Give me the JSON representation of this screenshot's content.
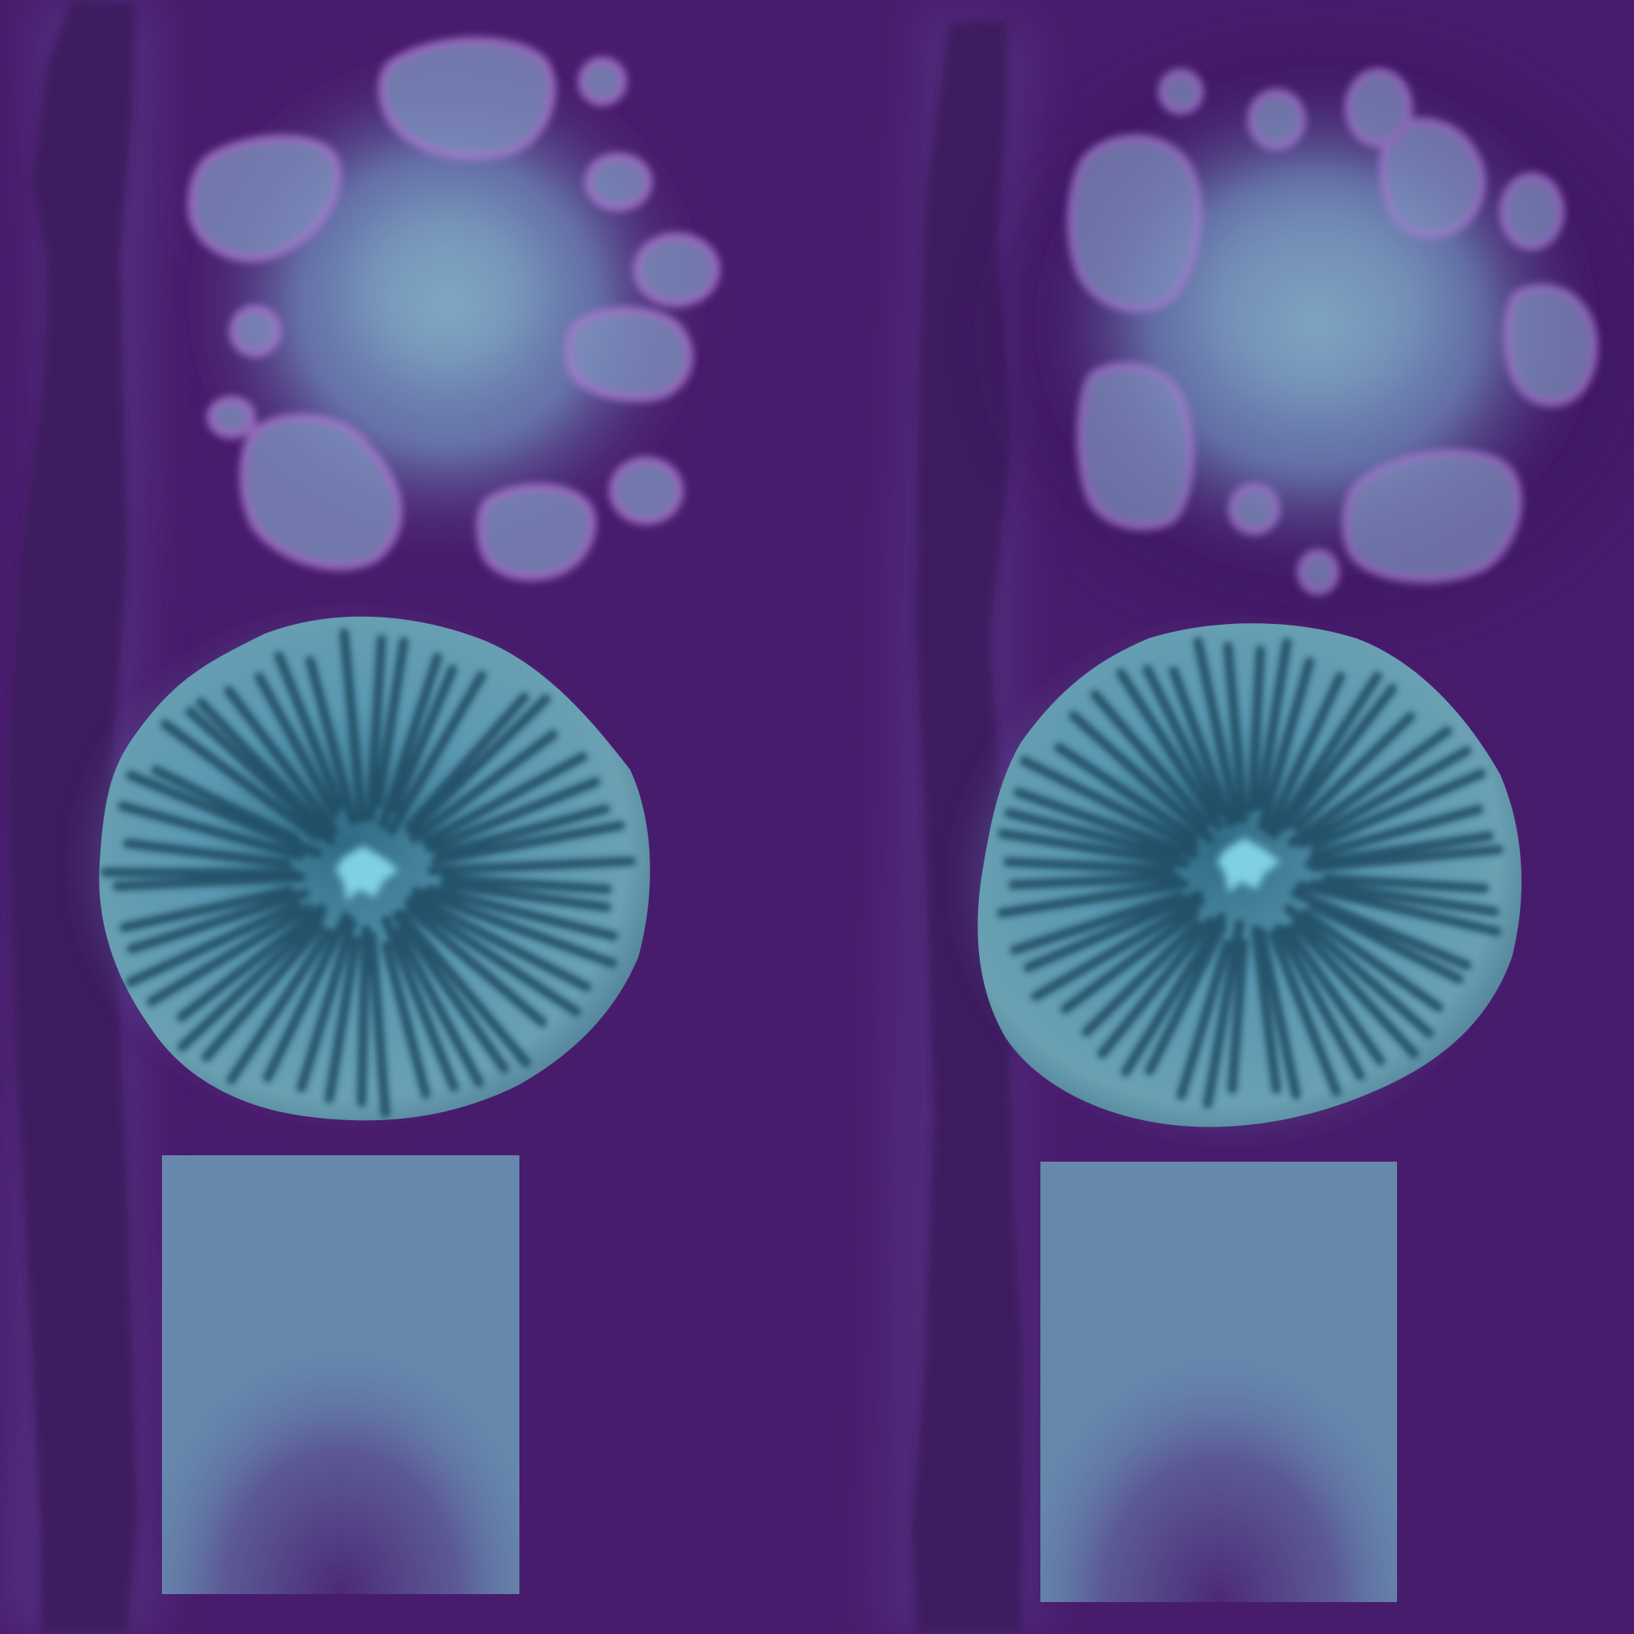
{
  "texture_sheet": {
    "colors": {
      "background": "#481c6c",
      "stem_dark": "#3e1a5e",
      "stem_halo": "#5a3a8a",
      "cap_top_glow": "#7fa6c4",
      "cap_top_spot": "#9a6fbf",
      "gill_base": "#6aa4b8",
      "gill_light": "#86c6d8",
      "gill_dark": "#1f4a60",
      "gill_center": "#7fd0e4",
      "base_block": "#6688ad",
      "base_shadow": "#50307c"
    },
    "variants": [
      {
        "id": "left",
        "parts": [
          "stem",
          "cap-top",
          "cap-gills",
          "base-block"
        ]
      },
      {
        "id": "right",
        "parts": [
          "stem",
          "cap-top",
          "cap-gills",
          "base-block"
        ]
      }
    ]
  }
}
